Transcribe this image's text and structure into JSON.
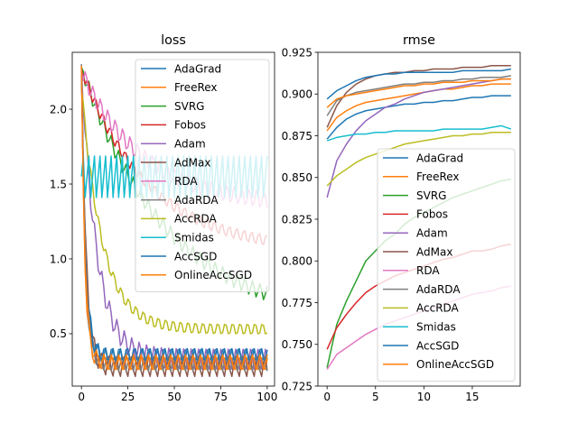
{
  "chart_data": [
    {
      "type": "line",
      "title": "loss",
      "xlabel": "",
      "ylabel": "",
      "xlim": [
        -4.95,
        103.95
      ],
      "ylim": [
        0.15,
        2.38
      ],
      "xticks": [
        0,
        25,
        50,
        75,
        100
      ],
      "yticks": [
        0.5,
        1.0,
        1.5,
        2.0
      ],
      "xtick_labels": [
        "0",
        "25",
        "50",
        "75",
        "100"
      ],
      "ytick_labels": [
        "0.5",
        "1.0",
        "1.5",
        "2.0"
      ],
      "grid": false,
      "legend": "top-right",
      "x": "0..100 (iteration index, 101 points)",
      "series": [
        {
          "name": "AdaGrad",
          "color": "#1f77b4",
          "start": 2.3,
          "end": 0.34,
          "rate": 0.45,
          "amp": 0.06,
          "period": 4
        },
        {
          "name": "FreeRex",
          "color": "#ff7f0e",
          "start": 2.28,
          "end": 0.3,
          "rate": 0.55,
          "amp": 0.05,
          "period": 4
        },
        {
          "name": "SVRG",
          "color": "#2ca02c",
          "start": 2.28,
          "end": 0.58,
          "rate": 0.022,
          "amp": 0.05,
          "period": 4
        },
        {
          "name": "Fobos",
          "color": "#d62728",
          "start": 2.27,
          "end": 1.05,
          "rate": 0.028,
          "amp": 0.04,
          "period": 4
        },
        {
          "name": "Adam",
          "color": "#9467bd",
          "start": 2.28,
          "end": 0.33,
          "rate": 0.12,
          "amp": 0.07,
          "period": 4
        },
        {
          "name": "AdMax",
          "color": "#8c564b",
          "start": 2.28,
          "end": 0.28,
          "rate": 0.4,
          "amp": 0.07,
          "period": 4
        },
        {
          "name": "RDA",
          "color": "#e377c2",
          "start": 2.25,
          "end": 1.35,
          "rate": 0.03,
          "amp": 0.06,
          "period": 4
        },
        {
          "name": "AdaRDA",
          "color": "#7f7f7f",
          "start": 2.3,
          "end": 0.3,
          "rate": 0.48,
          "amp": 0.05,
          "period": 4
        },
        {
          "name": "AccRDA",
          "color": "#bcbd22",
          "start": 2.15,
          "end": 0.53,
          "rate": 0.09,
          "amp": 0.04,
          "period": 4
        },
        {
          "name": "Smidas",
          "color": "#17becf",
          "start": 1.55,
          "end": 1.55,
          "rate": 0.05,
          "amp": 0.16,
          "period": 3
        },
        {
          "name": "AccSGD",
          "color": "#1f77b4",
          "start": 2.28,
          "end": 0.36,
          "rate": 0.5,
          "amp": 0.05,
          "period": 4
        },
        {
          "name": "OnlineAccSGD",
          "color": "#ff7f0e",
          "start": 2.29,
          "end": 0.31,
          "rate": 0.52,
          "amp": 0.05,
          "period": 4
        }
      ]
    },
    {
      "type": "line",
      "title": "rmse",
      "xlabel": "",
      "ylabel": "",
      "xlim": [
        -0.95,
        19.95
      ],
      "ylim": [
        0.725,
        0.925
      ],
      "xticks": [
        0,
        5,
        10,
        15
      ],
      "yticks": [
        0.725,
        0.75,
        0.775,
        0.8,
        0.825,
        0.85,
        0.875,
        0.9,
        0.925
      ],
      "xtick_labels": [
        "0",
        "5",
        "10",
        "15"
      ],
      "ytick_labels": [
        "0.725",
        "0.750",
        "0.775",
        "0.800",
        "0.825",
        "0.850",
        "0.875",
        "0.900",
        "0.925"
      ],
      "grid": false,
      "legend": "lower-right",
      "x": [
        0,
        1,
        2,
        3,
        4,
        5,
        6,
        7,
        8,
        9,
        10,
        11,
        12,
        13,
        14,
        15,
        16,
        17,
        18,
        19
      ],
      "series": [
        {
          "name": "AdaGrad",
          "color": "#1f77b4",
          "values": [
            0.873,
            0.88,
            0.885,
            0.888,
            0.89,
            0.891,
            0.892,
            0.893,
            0.894,
            0.894,
            0.895,
            0.895,
            0.896,
            0.896,
            0.897,
            0.898,
            0.898,
            0.899,
            0.899,
            0.899
          ]
        },
        {
          "name": "FreeRex",
          "color": "#ff7f0e",
          "values": [
            0.878,
            0.886,
            0.89,
            0.893,
            0.895,
            0.896,
            0.897,
            0.898,
            0.899,
            0.9,
            0.901,
            0.902,
            0.903,
            0.903,
            0.904,
            0.905,
            0.905,
            0.906,
            0.906,
            0.906
          ]
        },
        {
          "name": "SVRG",
          "color": "#2ca02c",
          "values": [
            0.736,
            0.762,
            0.776,
            0.788,
            0.8,
            0.806,
            0.812,
            0.816,
            0.822,
            0.826,
            0.829,
            0.832,
            0.835,
            0.838,
            0.84,
            0.842,
            0.844,
            0.846,
            0.848,
            0.849
          ]
        },
        {
          "name": "Fobos",
          "color": "#d62728",
          "values": [
            0.747,
            0.76,
            0.768,
            0.775,
            0.781,
            0.785,
            0.788,
            0.791,
            0.793,
            0.795,
            0.797,
            0.799,
            0.801,
            0.802,
            0.804,
            0.806,
            0.806,
            0.807,
            0.809,
            0.81
          ]
        },
        {
          "name": "Adam",
          "color": "#9467bd",
          "values": [
            0.838,
            0.86,
            0.87,
            0.878,
            0.884,
            0.888,
            0.892,
            0.894,
            0.897,
            0.899,
            0.901,
            0.902,
            0.903,
            0.904,
            0.905,
            0.906,
            0.907,
            0.908,
            0.909,
            0.909
          ]
        },
        {
          "name": "AdMax",
          "color": "#8c564b",
          "values": [
            0.88,
            0.893,
            0.901,
            0.906,
            0.909,
            0.911,
            0.912,
            0.913,
            0.913,
            0.914,
            0.914,
            0.915,
            0.915,
            0.915,
            0.916,
            0.916,
            0.916,
            0.917,
            0.917,
            0.917
          ]
        },
        {
          "name": "RDA",
          "color": "#e377c2",
          "values": [
            0.735,
            0.744,
            0.748,
            0.752,
            0.756,
            0.759,
            0.762,
            0.764,
            0.766,
            0.768,
            0.77,
            0.772,
            0.774,
            0.776,
            0.778,
            0.78,
            0.781,
            0.782,
            0.784,
            0.785
          ]
        },
        {
          "name": "AdaRDA",
          "color": "#7f7f7f",
          "values": [
            0.887,
            0.896,
            0.899,
            0.901,
            0.902,
            0.903,
            0.904,
            0.905,
            0.906,
            0.906,
            0.907,
            0.907,
            0.908,
            0.908,
            0.909,
            0.909,
            0.91,
            0.91,
            0.91,
            0.911
          ]
        },
        {
          "name": "AccRDA",
          "color": "#bcbd22",
          "values": [
            0.845,
            0.851,
            0.855,
            0.859,
            0.862,
            0.864,
            0.866,
            0.868,
            0.87,
            0.871,
            0.872,
            0.873,
            0.874,
            0.875,
            0.875,
            0.876,
            0.876,
            0.877,
            0.877,
            0.877
          ]
        },
        {
          "name": "Smidas",
          "color": "#17becf",
          "values": [
            0.872,
            0.874,
            0.875,
            0.876,
            0.876,
            0.877,
            0.877,
            0.878,
            0.878,
            0.878,
            0.878,
            0.878,
            0.879,
            0.879,
            0.879,
            0.879,
            0.879,
            0.88,
            0.881,
            0.879
          ]
        },
        {
          "name": "AccSGD",
          "color": "#1f77b4",
          "values": [
            0.897,
            0.902,
            0.905,
            0.908,
            0.91,
            0.911,
            0.912,
            0.912,
            0.913,
            0.913,
            0.913,
            0.913,
            0.913,
            0.913,
            0.914,
            0.914,
            0.914,
            0.914,
            0.914,
            0.915
          ]
        },
        {
          "name": "OnlineAccSGD",
          "color": "#ff7f0e",
          "values": [
            0.892,
            0.897,
            0.899,
            0.9,
            0.901,
            0.902,
            0.903,
            0.904,
            0.905,
            0.905,
            0.906,
            0.906,
            0.907,
            0.907,
            0.907,
            0.908,
            0.908,
            0.908,
            0.909,
            0.909
          ]
        }
      ]
    }
  ]
}
